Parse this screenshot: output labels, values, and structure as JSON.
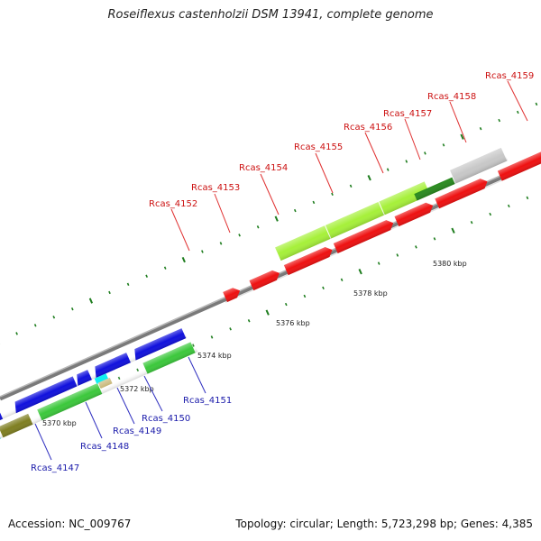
{
  "title": "Roseiflexus castenholzii DSM 13941, complete genome",
  "scale_labels": [
    "5370 kbp",
    "5372 kbp",
    "5374 kbp",
    "5376 kbp",
    "5378 kbp",
    "5380 kbp"
  ],
  "top_genes": [
    "Rcas_4152",
    "Rcas_4153",
    "Rcas_4154",
    "Rcas_4155",
    "Rcas_4156",
    "Rcas_4157",
    "Rcas_4158",
    "Rcas_4159"
  ],
  "bottom_genes": [
    "Rcas_4147",
    "Rcas_4148",
    "Rcas_4149",
    "Rcas_4150",
    "Rcas_4151"
  ],
  "colors": {
    "forward_cds": "#ee1111",
    "reverse_cds": "#1111dd",
    "light_green": "#a6f03a",
    "green": "#3cc83c",
    "dark_green": "#2a8a1f",
    "gray": "#c8c8c8",
    "cyan": "#11f0f0",
    "olive": "#7f7f22",
    "tan": "#c8b87a",
    "backbone": "#888888"
  },
  "footer": {
    "accession": "Accession: NC_009767",
    "summary": "Topology: circular; Length: 5,723,298 bp; Genes: 4,385"
  }
}
